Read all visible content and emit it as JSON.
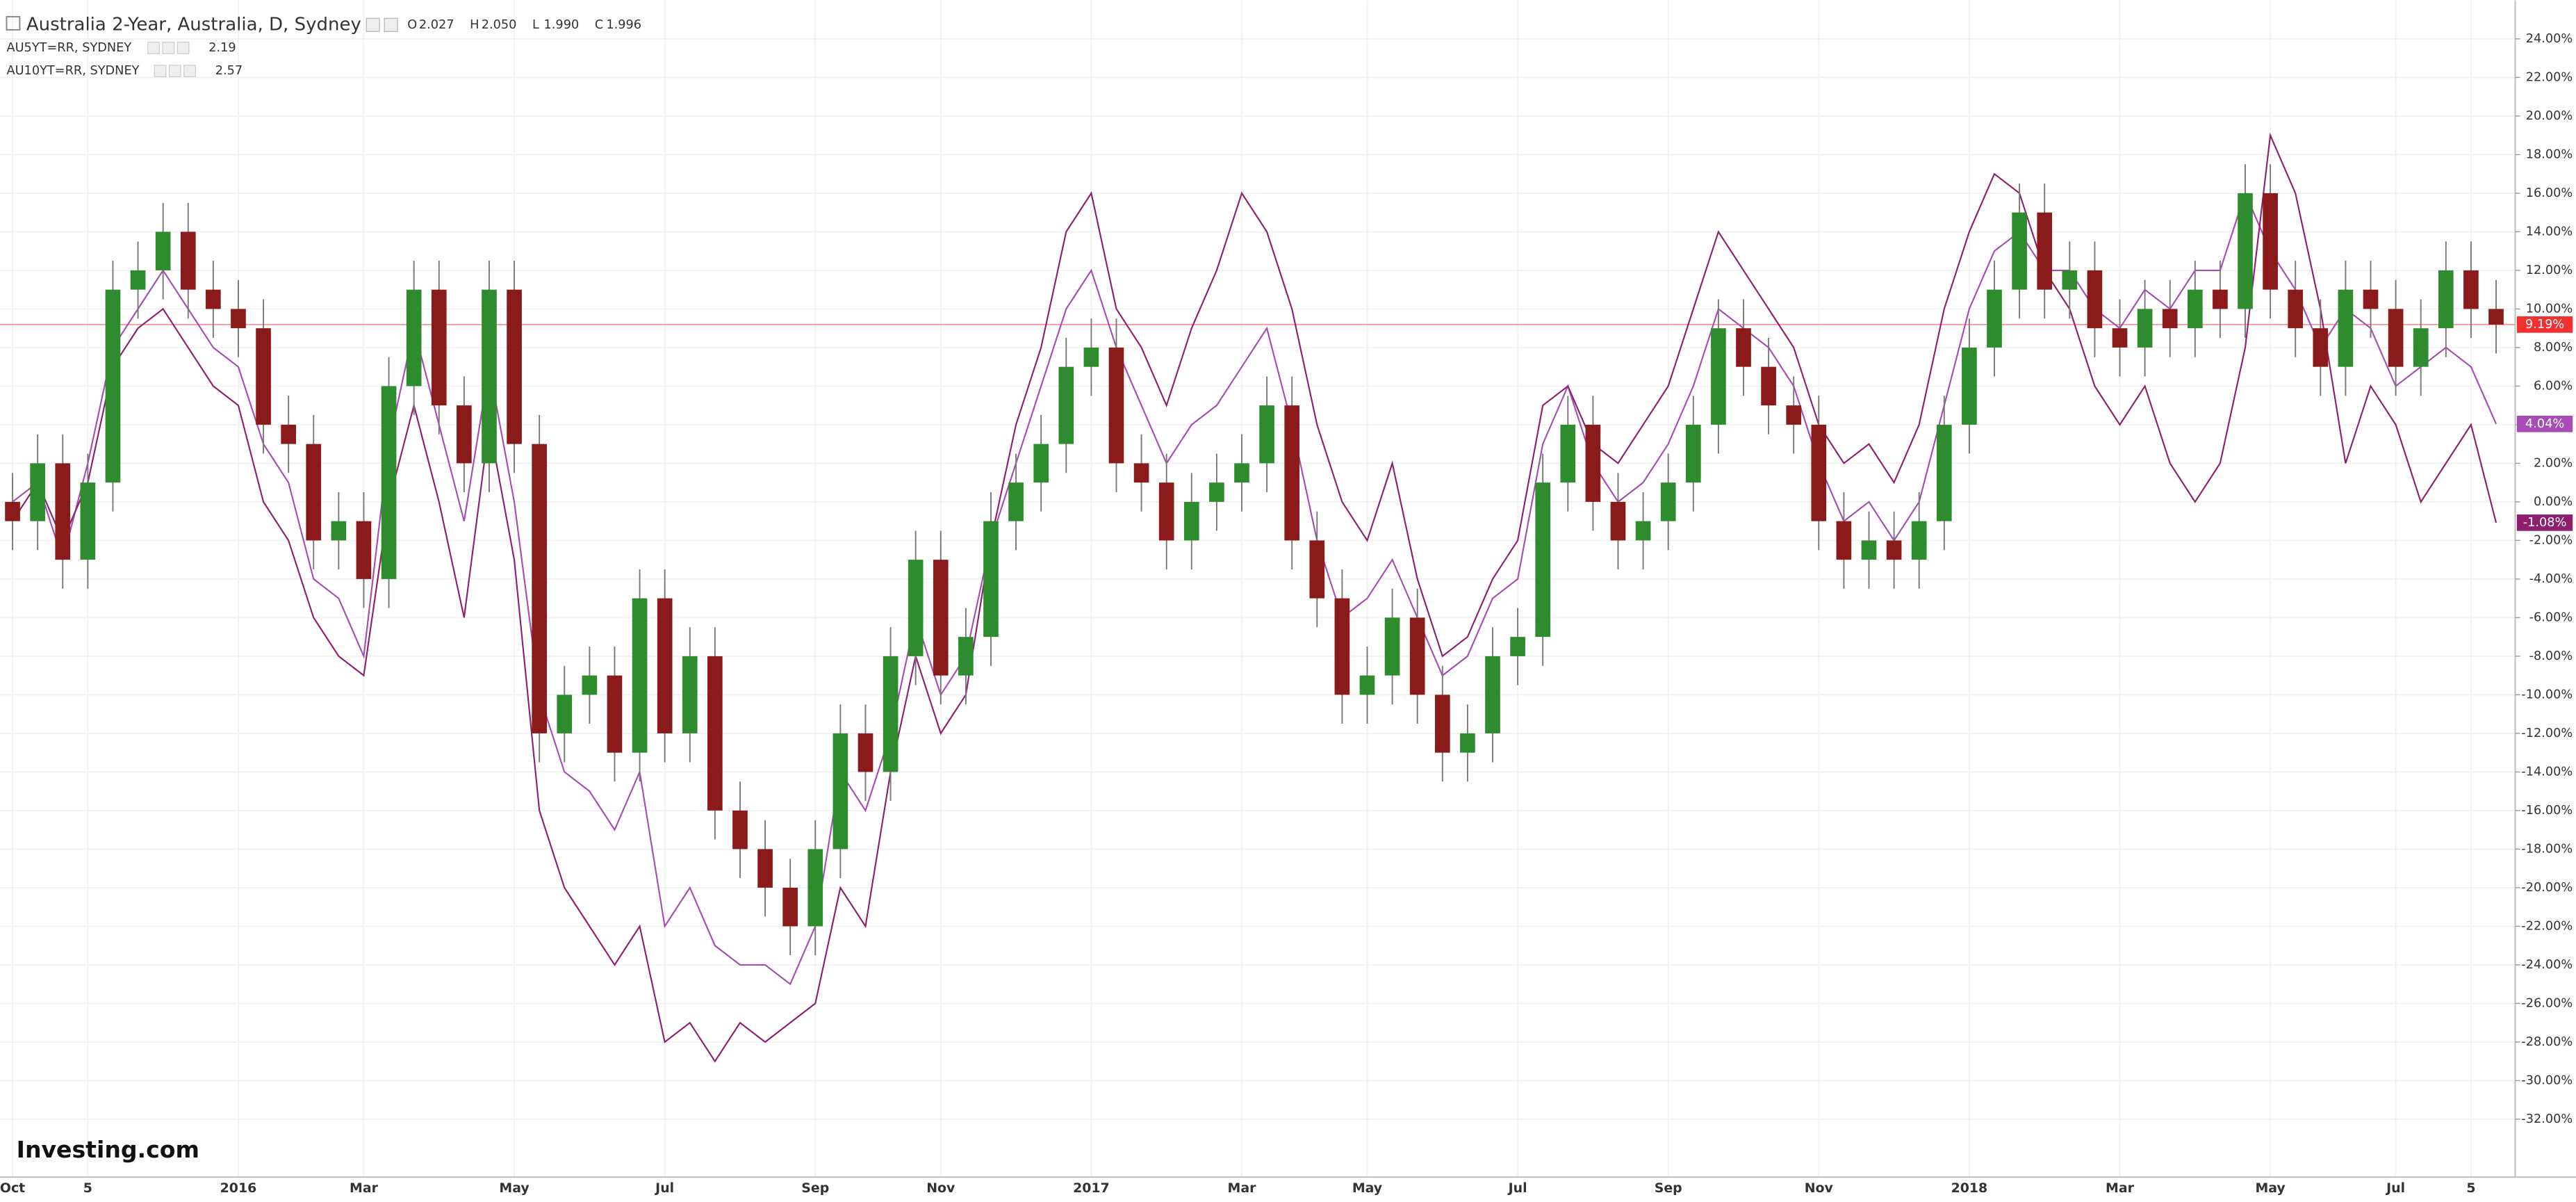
{
  "chart_data": {
    "type": "candlestick",
    "title": "Australia 2-Year, Australia, D, Sydney",
    "ohlc_header": [
      {
        "key": "O",
        "value": "2.027"
      },
      {
        "key": "H",
        "value": "2.050"
      },
      {
        "key": "L",
        "value": "1.990"
      },
      {
        "key": "C",
        "value": "1.996"
      }
    ],
    "logo": "Investing.com",
    "categories": [
      "Oct",
      null,
      null,
      "5",
      null,
      null,
      null,
      null,
      null,
      "2016",
      null,
      null,
      null,
      null,
      "Mar",
      null,
      null,
      null,
      null,
      null,
      "May",
      null,
      null,
      null,
      null,
      null,
      "Jul",
      null,
      null,
      null,
      null,
      null,
      "Sep",
      null,
      null,
      null,
      null,
      "Nov",
      null,
      null,
      null,
      null,
      null,
      "2017",
      null,
      null,
      null,
      null,
      null,
      "Mar",
      null,
      null,
      null,
      null,
      "May",
      null,
      null,
      null,
      null,
      null,
      "Jul",
      null,
      null,
      null,
      null,
      null,
      "Sep",
      null,
      null,
      null,
      null,
      null,
      "Nov",
      null,
      null,
      null,
      null,
      null,
      "2018",
      null,
      null,
      null,
      null,
      null,
      "Mar",
      null,
      null,
      null,
      null,
      null,
      "May",
      null,
      null,
      null,
      null,
      "Jul",
      null,
      null,
      "5",
      null
    ],
    "open": [
      0,
      -1,
      2,
      -3,
      1,
      11,
      12,
      14,
      11,
      10,
      9,
      4,
      3,
      -2,
      -1,
      -4,
      6,
      11,
      5,
      2,
      11,
      3,
      -12,
      -10,
      -9,
      -13,
      -5,
      -12,
      -8,
      -16,
      -18,
      -20,
      -22,
      -18,
      -12,
      -14,
      -8,
      -3,
      -9,
      -7,
      -1,
      1,
      3,
      7,
      8,
      2,
      1,
      -2,
      0,
      1,
      2,
      5,
      -2,
      -5,
      -10,
      -9,
      -6,
      -10,
      -13,
      -12,
      -8,
      -7,
      1,
      4,
      0,
      -2,
      -1,
      1,
      4,
      9,
      7,
      5,
      4,
      -1,
      -3,
      -2,
      -3,
      -1,
      4,
      8,
      11,
      15,
      11,
      12,
      9,
      8,
      10,
      9,
      11,
      10,
      16,
      11,
      9,
      7,
      11,
      10,
      7,
      9,
      12,
      10
    ],
    "high": [
      1.5,
      3.5,
      3.5,
      2.5,
      12.5,
      13.5,
      15.5,
      15.5,
      12.5,
      11.5,
      10.5,
      5.5,
      4.5,
      0.5,
      0.5,
      7.5,
      12.5,
      12.5,
      6.5,
      12.5,
      12.5,
      4.5,
      -8.5,
      -7.5,
      -7.5,
      -3.5,
      -3.5,
      -6.5,
      -6.5,
      -14.5,
      -16.5,
      -18.5,
      -16.5,
      -10.5,
      -10.5,
      -6.5,
      -1.5,
      -1.5,
      -5.5,
      0.5,
      2.5,
      4.5,
      8.5,
      9.5,
      9.5,
      3.5,
      2.5,
      1.5,
      2.5,
      3.5,
      6.5,
      6.5,
      -0.5,
      -3.5,
      -7.5,
      -4.5,
      -4.5,
      -8.5,
      -10.5,
      -6.5,
      -5.5,
      2.5,
      5.5,
      5.5,
      1.5,
      0.5,
      2.5,
      5.5,
      10.5,
      10.5,
      8.5,
      6.5,
      5.5,
      0.5,
      -0.5,
      -0.5,
      0.5,
      5.5,
      9.5,
      12.5,
      16.5,
      16.5,
      13.5,
      13.5,
      10.5,
      11.5,
      11.5,
      12.5,
      12.5,
      17.5,
      17.5,
      12.5,
      10.5,
      12.5,
      12.5,
      11.5,
      10.5,
      13.5,
      13.5,
      11.5
    ],
    "low": [
      -2.5,
      -2.5,
      -4.5,
      -4.5,
      -0.5,
      9.5,
      10.5,
      9.5,
      8.5,
      7.5,
      2.5,
      1.5,
      -3.5,
      -3.5,
      -5.5,
      -5.5,
      4.5,
      3.5,
      0.5,
      0.5,
      1.5,
      -13.5,
      -13.5,
      -11.5,
      -14.5,
      -14.5,
      -13.5,
      -13.5,
      -17.5,
      -19.5,
      -21.5,
      -23.5,
      -23.5,
      -19.5,
      -15.5,
      -15.5,
      -9.5,
      -10.5,
      -10.5,
      -8.5,
      -2.5,
      -0.5,
      1.5,
      5.5,
      0.5,
      -0.5,
      -3.5,
      -3.5,
      -1.5,
      -0.5,
      0.5,
      -3.5,
      -6.5,
      -11.5,
      -11.5,
      -10.5,
      -11.5,
      -14.5,
      -14.5,
      -13.5,
      -9.5,
      -8.5,
      -0.5,
      -1.5,
      -3.5,
      -3.5,
      -2.5,
      -0.5,
      2.5,
      5.5,
      3.5,
      2.5,
      -2.5,
      -4.5,
      -4.5,
      -4.5,
      -4.5,
      -2.5,
      2.5,
      6.5,
      9.5,
      9.5,
      9.5,
      7.5,
      6.5,
      6.5,
      7.5,
      7.5,
      8.5,
      8.5,
      9.5,
      7.5,
      5.5,
      5.5,
      8.5,
      5.5,
      5.5,
      7.5,
      8.5,
      7.69
    ],
    "close": [
      -1,
      2,
      -3,
      1,
      11,
      12,
      14,
      11,
      10,
      9,
      4,
      3,
      -2,
      -1,
      -4,
      6,
      11,
      5,
      2,
      11,
      3,
      -12,
      -10,
      -9,
      -13,
      -5,
      -12,
      -8,
      -16,
      -18,
      -20,
      -22,
      -18,
      -12,
      -14,
      -8,
      -3,
      -9,
      -7,
      -1,
      1,
      3,
      7,
      8,
      2,
      1,
      -2,
      0,
      1,
      2,
      5,
      -2,
      -5,
      -10,
      -9,
      -6,
      -10,
      -13,
      -12,
      -8,
      -7,
      1,
      4,
      0,
      -2,
      -1,
      1,
      4,
      9,
      7,
      5,
      4,
      -1,
      -3,
      -2,
      -3,
      -1,
      4,
      8,
      11,
      15,
      11,
      12,
      9,
      8,
      10,
      9,
      11,
      10,
      16,
      11,
      9,
      7,
      11,
      10,
      7,
      9,
      12,
      10,
      9.19
    ],
    "color_up": "#2e8b2e",
    "color_down": "#8b1a1a",
    "price_label": {
      "value": 9.19,
      "label": "9.19%",
      "color": "#f23030"
    },
    "series": [
      {
        "name": "AU5YT=RR, SYDNEY",
        "legend_value": 2.19,
        "color": "#a64cb4",
        "values": [
          0,
          1,
          -3,
          2,
          8,
          10,
          12,
          10,
          8,
          7,
          3,
          1,
          -4,
          -5,
          -8,
          3,
          9,
          4,
          -1,
          7,
          0,
          -10,
          -14,
          -15,
          -17,
          -14,
          -22,
          -20,
          -23,
          -24,
          -24,
          -25,
          -22,
          -14,
          -16,
          -12,
          -6,
          -10,
          -8,
          -2,
          2,
          6,
          10,
          12,
          8,
          5,
          2,
          4,
          5,
          7,
          9,
          4,
          -2,
          -6,
          -5,
          -3,
          -6,
          -9,
          -8,
          -5,
          -4,
          3,
          6,
          2,
          0,
          1,
          3,
          6,
          10,
          9,
          8,
          6,
          2,
          -1,
          0,
          -2,
          0,
          5,
          10,
          13,
          14,
          12,
          12,
          10,
          9,
          11,
          10,
          12,
          12,
          16,
          13,
          11,
          8,
          10,
          9,
          6,
          7,
          8,
          7,
          4.04
        ],
        "price_label": {
          "value": 4.04,
          "label": "4.04%"
        }
      },
      {
        "name": "AU10YT=RR, SYDNEY",
        "legend_value": 2.57,
        "color": "#8e1f6e",
        "values": [
          -1,
          1,
          -2,
          1,
          7,
          9,
          10,
          8,
          6,
          5,
          0,
          -2,
          -6,
          -8,
          -9,
          0,
          5,
          0,
          -6,
          4,
          -3,
          -16,
          -20,
          -22,
          -24,
          -22,
          -28,
          -27,
          -29,
          -27,
          -28,
          -27,
          -26,
          -20,
          -22,
          -14,
          -8,
          -12,
          -10,
          -2,
          4,
          8,
          14,
          16,
          10,
          8,
          5,
          9,
          12,
          16,
          14,
          10,
          4,
          0,
          -2,
          2,
          -4,
          -8,
          -7,
          -4,
          -2,
          5,
          6,
          3,
          2,
          4,
          6,
          10,
          14,
          12,
          10,
          8,
          4,
          2,
          3,
          1,
          4,
          10,
          14,
          17,
          16,
          12,
          10,
          6,
          4,
          6,
          2,
          0,
          2,
          8,
          19,
          16,
          10,
          2,
          6,
          4,
          0,
          2,
          4,
          -1.08
        ],
        "price_label": {
          "value": -1.08,
          "label": "-1.08%"
        }
      }
    ],
    "ylim": [
      -35,
      26
    ],
    "yticks": [
      {
        "value": 24,
        "label": "24.00%"
      },
      {
        "value": 22,
        "label": "22.00%"
      },
      {
        "value": 20,
        "label": "20.00%"
      },
      {
        "value": 18,
        "label": "18.00%"
      },
      {
        "value": 16,
        "label": "16.00%"
      },
      {
        "value": 14,
        "label": "14.00%"
      },
      {
        "value": 12,
        "label": "12.00%"
      },
      {
        "value": 10,
        "label": "10.00%"
      },
      {
        "value": 8,
        "label": "8.00%"
      },
      {
        "value": 6,
        "label": "6.00%"
      },
      {
        "value": 4,
        "label": "4.00%"
      },
      {
        "value": 2,
        "label": "2.00%"
      },
      {
        "value": 0,
        "label": "0.00%"
      },
      {
        "value": -2,
        "label": "-2.00%"
      },
      {
        "value": -4,
        "label": "-4.00%"
      },
      {
        "value": -6,
        "label": "-6.00%"
      },
      {
        "value": -8,
        "label": "-8.00%"
      },
      {
        "value": -10,
        "label": "-10.00%"
      },
      {
        "value": -12,
        "label": "-12.00%"
      },
      {
        "value": -14,
        "label": "-14.00%"
      },
      {
        "value": -16,
        "label": "-16.00%"
      },
      {
        "value": -18,
        "label": "-18.00%"
      },
      {
        "value": -20,
        "label": "-20.00%"
      },
      {
        "value": -22,
        "label": "-22.00%"
      },
      {
        "value": -24,
        "label": "-24.00%"
      },
      {
        "value": -26,
        "label": "-26.00%"
      },
      {
        "value": -28,
        "label": "-28.00%"
      },
      {
        "value": -30,
        "label": "-30.00%"
      },
      {
        "value": -32,
        "label": "-32.00%"
      }
    ],
    "grid": true
  }
}
